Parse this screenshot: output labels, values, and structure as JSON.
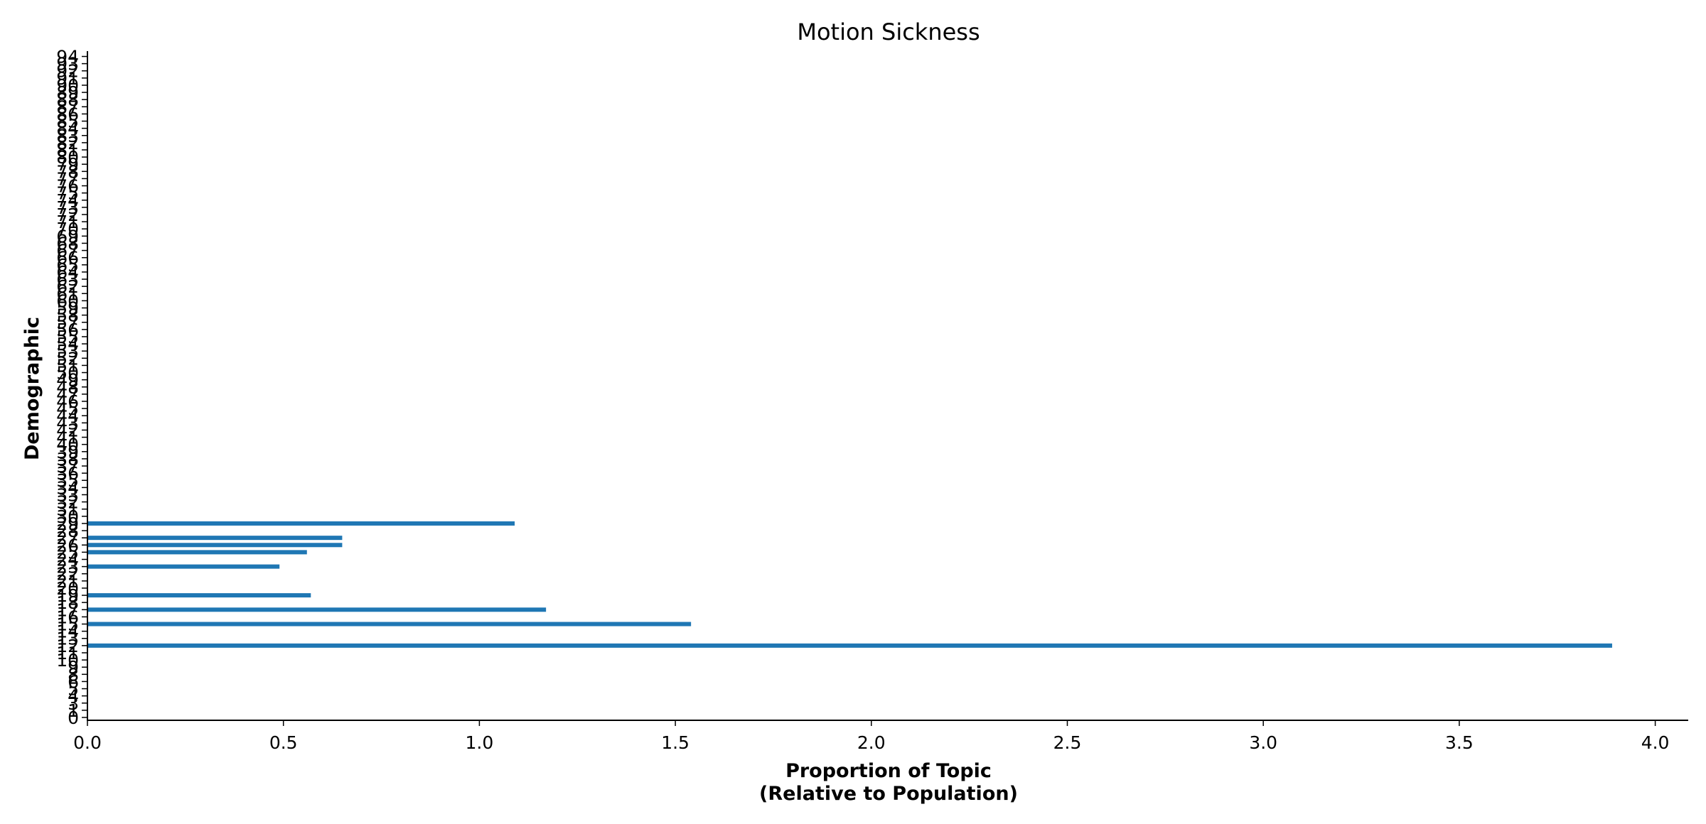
{
  "chart_data": {
    "type": "bar",
    "orientation": "horizontal",
    "title": "Motion Sickness",
    "xlabel_line1": "Proportion of Topic",
    "xlabel_line2": "(Relative to Population)",
    "ylabel": "Demographic",
    "xlim": [
      0,
      4.0
    ],
    "x_ticks": [
      "0.0",
      "0.5",
      "1.0",
      "1.5",
      "2.0",
      "2.5",
      "3.0",
      "3.5",
      "4.0"
    ],
    "y_ticks": [
      "0",
      "1",
      "3",
      "4",
      "5",
      "6",
      "8",
      "9",
      "10",
      "11",
      "12",
      "13",
      "14",
      "15",
      "16",
      "17",
      "18",
      "19",
      "20",
      "21",
      "22",
      "23",
      "24",
      "25",
      "26",
      "27",
      "28",
      "29",
      "30",
      "31",
      "32",
      "33",
      "34",
      "35",
      "36",
      "37",
      "38",
      "39",
      "40",
      "41",
      "42",
      "43",
      "44",
      "45",
      "46",
      "47",
      "48",
      "49",
      "50",
      "51",
      "52",
      "53",
      "54",
      "55",
      "56",
      "57",
      "58",
      "59",
      "60",
      "61",
      "62",
      "63",
      "64",
      "65",
      "66",
      "67",
      "68",
      "69",
      "70",
      "71",
      "72",
      "73",
      "74",
      "75",
      "76",
      "77",
      "78",
      "79",
      "80",
      "81",
      "82",
      "83",
      "84",
      "85",
      "86",
      "87",
      "88",
      "89",
      "90",
      "91",
      "92",
      "93",
      "94"
    ],
    "categories": [
      "0",
      "1",
      "3",
      "4",
      "5",
      "6",
      "8",
      "9",
      "10",
      "11",
      "12",
      "13",
      "14",
      "15",
      "16",
      "17",
      "18",
      "19",
      "20",
      "21",
      "22",
      "23",
      "24",
      "25",
      "26",
      "27",
      "28",
      "29",
      "30",
      "31",
      "32",
      "33",
      "34",
      "35",
      "36",
      "37",
      "38",
      "39",
      "40",
      "41",
      "42",
      "43",
      "44",
      "45",
      "46",
      "47",
      "48",
      "49",
      "50",
      "51",
      "52",
      "53",
      "54",
      "55",
      "56",
      "57",
      "58",
      "59",
      "60",
      "61",
      "62",
      "63",
      "64",
      "65",
      "66",
      "67",
      "68",
      "69",
      "70",
      "71",
      "72",
      "73",
      "74",
      "75",
      "76",
      "77",
      "78",
      "79",
      "80",
      "81",
      "82",
      "83",
      "84",
      "85",
      "86",
      "87",
      "88",
      "89",
      "90",
      "91",
      "92",
      "93",
      "94"
    ],
    "values": [
      0,
      0,
      0,
      0,
      0,
      0,
      0,
      0,
      0,
      0,
      3.89,
      0,
      0,
      1.54,
      0,
      1.17,
      0,
      0.57,
      0,
      0,
      0,
      0.49,
      0,
      0.56,
      0.65,
      0.65,
      0,
      1.09,
      0,
      0,
      0,
      0,
      0,
      0,
      0,
      0,
      0,
      0,
      0,
      0,
      0,
      0,
      0,
      0,
      0,
      0,
      0,
      0,
      0,
      0,
      0,
      0,
      0,
      0,
      0,
      0,
      0,
      0,
      0,
      0,
      0,
      0,
      0,
      0,
      0,
      0,
      0,
      0,
      0,
      0,
      0,
      0,
      0,
      0,
      0,
      0,
      0,
      0,
      0,
      0,
      0,
      0,
      0,
      0,
      0,
      0,
      0,
      0,
      0,
      0,
      0,
      0,
      0
    ],
    "bar_color": "#1f77b4",
    "grid": false,
    "legend": "none"
  }
}
